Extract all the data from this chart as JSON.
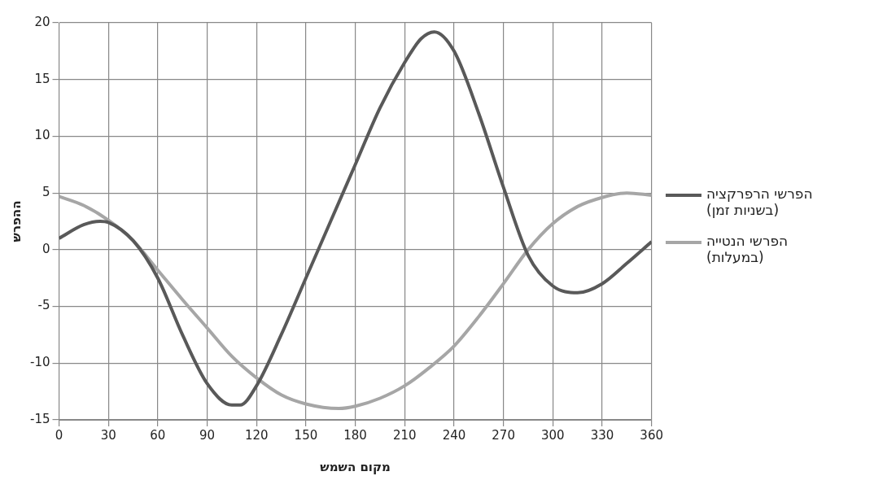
{
  "chart_data": {
    "type": "line",
    "xlabel": "מקום השמש",
    "ylabel": "ההפרש",
    "xlim": [
      0,
      360
    ],
    "xticks": [
      0,
      30,
      60,
      90,
      120,
      150,
      180,
      210,
      240,
      270,
      300,
      330,
      360
    ],
    "ylim": [
      -15,
      20
    ],
    "yticks": [
      -15,
      -10,
      -5,
      0,
      5,
      10,
      15,
      20
    ],
    "grid": true,
    "legend": "right",
    "marker": "none",
    "line_style": "solid",
    "series": [
      {
        "name": "הפרשי הרפרקציה (בשניות זמן)",
        "color": "#595959",
        "x": [
          0,
          15,
          25,
          30,
          45,
          60,
          75,
          90,
          105,
          110,
          120,
          135,
          150,
          165,
          180,
          195,
          210,
          220,
          228,
          240,
          255,
          270,
          285,
          300,
          315,
          330,
          345,
          360
        ],
        "values": [
          1,
          2.2,
          2.5,
          2.4,
          0.8,
          -2.5,
          -7.5,
          -11.8,
          -13.7,
          -13.7,
          -12,
          -7.5,
          -2.5,
          2.5,
          7.5,
          12.5,
          16.5,
          18.6,
          19.2,
          17.5,
          12,
          5.5,
          -0.5,
          -3.2,
          -3.8,
          -3,
          -1.2,
          0.7
        ]
      },
      {
        "name": "הפרשי הנטייה (במעלות)",
        "color": "#a6a6a6",
        "x": [
          0,
          15,
          30,
          45,
          60,
          75,
          90,
          105,
          120,
          135,
          150,
          170,
          180,
          195,
          210,
          225,
          240,
          255,
          270,
          285,
          300,
          315,
          330,
          345,
          360
        ],
        "values": [
          4.7,
          3.9,
          2.6,
          0.8,
          -1.8,
          -4.4,
          -6.9,
          -9.4,
          -11.3,
          -12.8,
          -13.6,
          -14,
          -13.8,
          -13.1,
          -12,
          -10.4,
          -8.5,
          -5.9,
          -3,
          0,
          2.3,
          3.8,
          4.6,
          5,
          4.8
        ]
      }
    ]
  }
}
